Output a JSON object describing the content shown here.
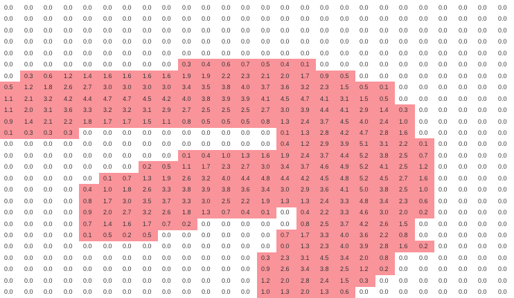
{
  "sheet": {
    "highlight_color": "#f9949a",
    "rows": [
      {
        "values": [
          "0.0",
          "0.0",
          "0.0",
          "0.0",
          "0.0",
          "0.0",
          "0.0",
          "0.0",
          "0.0",
          "0.0",
          "0.0",
          "0.0",
          "0.0",
          "0.0",
          "0.0",
          "0.0",
          "0.0",
          "0.0",
          "0.0",
          "0.0",
          "0.0",
          "0.0",
          "0.0",
          "0.0",
          "0.0",
          "0.0"
        ],
        "highlight": []
      },
      {
        "values": [
          "0.0",
          "0.0",
          "0.0",
          "0.0",
          "0.0",
          "0.0",
          "0.0",
          "0.0",
          "0.0",
          "0.0",
          "0.0",
          "0.0",
          "0.0",
          "0.0",
          "0.0",
          "0.0",
          "0.0",
          "0.0",
          "0.0",
          "0.0",
          "0.0",
          "0.0",
          "0.0",
          "0.0",
          "0.0",
          "0.0"
        ],
        "highlight": []
      },
      {
        "values": [
          "0.0",
          "0.0",
          "0.0",
          "0.0",
          "0.0",
          "0.0",
          "0.0",
          "0.0",
          "0.0",
          "0.0",
          "0.0",
          "0.0",
          "0.0",
          "0.0",
          "0.0",
          "0.0",
          "0.0",
          "0.0",
          "0.0",
          "0.0",
          "0.0",
          "0.0",
          "0.0",
          "0.0",
          "0.0",
          "0.0"
        ],
        "highlight": []
      },
      {
        "values": [
          "0.0",
          "0.0",
          "0.0",
          "0.0",
          "0.0",
          "0.0",
          "0.0",
          "0.0",
          "0.0",
          "0.0",
          "0.0",
          "0.0",
          "0.0",
          "0.0",
          "0.0",
          "0.0",
          "0.0",
          "0.0",
          "0.0",
          "0.0",
          "0.0",
          "0.0",
          "0.0",
          "0.0",
          "0.0",
          "0.0"
        ],
        "highlight": []
      },
      {
        "values": [
          "0.0",
          "0.0",
          "0.0",
          "0.0",
          "0.0",
          "0.0",
          "0.0",
          "0.0",
          "0.0",
          "0.0",
          "0.0",
          "0.0",
          "0.0",
          "0.0",
          "0.0",
          "0.0",
          "0.0",
          "0.0",
          "0.0",
          "0.0",
          "0.0",
          "0.0",
          "0.0",
          "0.0",
          "0.0",
          "0.0"
        ],
        "highlight": []
      },
      {
        "values": [
          "0.0",
          "0.0",
          "0.0",
          "0.0",
          "0.0",
          "0.0",
          "0.0",
          "0.0",
          "0.0",
          "0.3",
          "0.4",
          "0.6",
          "0.7",
          "0.5",
          "0.4",
          "0.1",
          "0.0",
          "0.0",
          "0.0",
          "0.0",
          "0.0",
          "0.0",
          "0.0",
          "0.0",
          "0.0",
          "0.0"
        ],
        "highlight": [
          9,
          10,
          11,
          12,
          13,
          14,
          15
        ]
      },
      {
        "values": [
          "0.0",
          "0.3",
          "0.6",
          "1.2",
          "1.4",
          "1.6",
          "1.6",
          "1.6",
          "1.6",
          "1.9",
          "1.9",
          "2.2",
          "2.3",
          "2.1",
          "2.0",
          "1.7",
          "0.9",
          "0.5",
          "0.0",
          "0.0",
          "0.0",
          "0.0",
          "0.0",
          "0.0",
          "0.0",
          "0.0"
        ],
        "highlight": [
          1,
          2,
          3,
          4,
          5,
          6,
          7,
          8,
          9,
          10,
          11,
          12,
          13,
          14,
          15,
          16,
          17
        ]
      },
      {
        "values": [
          "0.5",
          "1.2",
          "1.8",
          "2.6",
          "2.7",
          "3.0",
          "3.0",
          "3.0",
          "3.0",
          "3.4",
          "3.5",
          "3.8",
          "4.0",
          "3.7",
          "3.6",
          "3.2",
          "2.3",
          "1.5",
          "0.5",
          "0.1",
          "0.0",
          "0.0",
          "0.0",
          "0.0",
          "0.0",
          "0.0"
        ],
        "highlight": [
          0,
          1,
          2,
          3,
          4,
          5,
          6,
          7,
          8,
          9,
          10,
          11,
          12,
          13,
          14,
          15,
          16,
          17,
          18,
          19
        ]
      },
      {
        "values": [
          "1.1",
          "2.1",
          "3.2",
          "4.2",
          "4.4",
          "4.7",
          "4.7",
          "4.5",
          "4.2",
          "4.0",
          "3.8",
          "3.9",
          "3.9",
          "4.1",
          "4.5",
          "4.7",
          "4.1",
          "3.1",
          "1.5",
          "0.5",
          "0.0",
          "0.0",
          "0.0",
          "0.0",
          "0.0",
          "0.0"
        ],
        "highlight": [
          0,
          1,
          2,
          3,
          4,
          5,
          6,
          7,
          8,
          9,
          10,
          11,
          12,
          13,
          14,
          15,
          16,
          17,
          18,
          19
        ]
      },
      {
        "values": [
          "1.1",
          "2.0",
          "3.1",
          "3.6",
          "3.3",
          "3.2",
          "3.2",
          "3.1",
          "2.9",
          "2.7",
          "2.5",
          "2.5",
          "2.5",
          "2.7",
          "3.0",
          "3.9",
          "4.4",
          "4.1",
          "2.9",
          "1.4",
          "0.3",
          "0.0",
          "0.0",
          "0.0",
          "0.0",
          "0.0"
        ],
        "highlight": [
          0,
          1,
          2,
          3,
          4,
          5,
          6,
          7,
          8,
          9,
          10,
          11,
          12,
          13,
          14,
          15,
          16,
          17,
          18,
          19,
          20
        ]
      },
      {
        "values": [
          "0.9",
          "1.4",
          "2.1",
          "2.2",
          "1.8",
          "1.7",
          "1.7",
          "1.5",
          "1.1",
          "0.8",
          "0.5",
          "0.5",
          "0.5",
          "0.8",
          "1.3",
          "2.4",
          "3.7",
          "4.5",
          "4.0",
          "2.4",
          "1.0",
          "0.0",
          "0.0",
          "0.0",
          "0.0",
          "0.0"
        ],
        "highlight": [
          0,
          1,
          2,
          3,
          4,
          5,
          6,
          7,
          8,
          9,
          10,
          11,
          12,
          13,
          14,
          15,
          16,
          17,
          18,
          19,
          20
        ]
      },
      {
        "values": [
          "0.1",
          "0.3",
          "0.3",
          "0.3",
          "0.0",
          "0.0",
          "0.0",
          "0.0",
          "0.0",
          "0.0",
          "0.0",
          "0.0",
          "0.0",
          "0.0",
          "0.1",
          "1.3",
          "2.8",
          "4.2",
          "4.7",
          "2.8",
          "1.6",
          "0.0",
          "0.0",
          "0.0",
          "0.0",
          "0.0"
        ],
        "highlight": [
          0,
          1,
          2,
          3,
          14,
          15,
          16,
          17,
          18,
          19,
          20
        ]
      },
      {
        "values": [
          "0.0",
          "0.0",
          "0.0",
          "0.0",
          "0.0",
          "0.0",
          "0.0",
          "0.0",
          "0.0",
          "0.0",
          "0.0",
          "0.0",
          "0.0",
          "0.0",
          "0.4",
          "1.2",
          "2.9",
          "3.9",
          "5.1",
          "3.1",
          "2.2",
          "0.1",
          "0.0",
          "0.0",
          "0.0",
          "0.0"
        ],
        "highlight": [
          14,
          15,
          16,
          17,
          18,
          19,
          20,
          21
        ]
      },
      {
        "values": [
          "0.0",
          "0.0",
          "0.0",
          "0.0",
          "0.0",
          "0.0",
          "0.0",
          "0.0",
          "0.0",
          "0.1",
          "0.4",
          "1.0",
          "1.3",
          "1.6",
          "1.9",
          "2.4",
          "3.7",
          "4.4",
          "5.2",
          "3.8",
          "2.5",
          "0.7",
          "0.0",
          "0.0",
          "0.0",
          "0.0"
        ],
        "highlight": [
          9,
          10,
          11,
          12,
          13,
          14,
          15,
          16,
          17,
          18,
          19,
          20,
          21
        ]
      },
      {
        "values": [
          "0.0",
          "0.0",
          "0.0",
          "0.0",
          "0.0",
          "0.0",
          "0.0",
          "0.2",
          "0.5",
          "1.1",
          "1.7",
          "2.3",
          "2.7",
          "3.0",
          "3.4",
          "3.7",
          "4.6",
          "4.9",
          "5.2",
          "4.1",
          "2.5",
          "1.2",
          "0.0",
          "0.0",
          "0.0",
          "0.0"
        ],
        "highlight": [
          7,
          8,
          9,
          10,
          11,
          12,
          13,
          14,
          15,
          16,
          17,
          18,
          19,
          20,
          21
        ]
      },
      {
        "values": [
          "0.0",
          "0.0",
          "0.0",
          "0.0",
          "0.0",
          "0.1",
          "0.7",
          "1.3",
          "1.9",
          "2.6",
          "3.2",
          "4.0",
          "4.4",
          "4.8",
          "4.4",
          "4.2",
          "4.5",
          "4.8",
          "5.2",
          "4.5",
          "2.7",
          "1.6",
          "0.0",
          "0.0",
          "0.0",
          "0.0"
        ],
        "highlight": [
          5,
          6,
          7,
          8,
          9,
          10,
          11,
          12,
          13,
          14,
          15,
          16,
          17,
          18,
          19,
          20,
          21
        ]
      },
      {
        "values": [
          "0.0",
          "0.0",
          "0.0",
          "0.0",
          "0.4",
          "1.0",
          "1.8",
          "2.6",
          "3.3",
          "3.8",
          "3.9",
          "3.8",
          "3.6",
          "3.4",
          "3.0",
          "2.9",
          "3.6",
          "4.1",
          "5.0",
          "3.8",
          "2.5",
          "1.0",
          "0.0",
          "0.0",
          "0.0",
          "0.0"
        ],
        "highlight": [
          4,
          5,
          6,
          7,
          8,
          9,
          10,
          11,
          12,
          13,
          14,
          15,
          16,
          17,
          18,
          19,
          20,
          21
        ]
      },
      {
        "values": [
          "0.0",
          "0.0",
          "0.0",
          "0.0",
          "0.8",
          "1.7",
          "3.0",
          "3.5",
          "3.7",
          "3.3",
          "3.0",
          "2.5",
          "2.2",
          "1.9",
          "1.3",
          "1.3",
          "2.4",
          "3.3",
          "4.8",
          "3.4",
          "2.3",
          "0.6",
          "0.0",
          "0.0",
          "0.0",
          "0.0"
        ],
        "highlight": [
          4,
          5,
          6,
          7,
          8,
          9,
          10,
          11,
          12,
          13,
          14,
          15,
          16,
          17,
          18,
          19,
          20,
          21
        ]
      },
      {
        "values": [
          "0.0",
          "0.0",
          "0.0",
          "0.0",
          "0.9",
          "2.0",
          "2.7",
          "3.2",
          "2.6",
          "1.8",
          "1.3",
          "0.7",
          "0.4",
          "0.1",
          "0.0",
          "0.4",
          "2.2",
          "3.3",
          "4.6",
          "3.0",
          "2.0",
          "0.2",
          "0.0",
          "0.0",
          "0.0",
          "0.0"
        ],
        "highlight": [
          4,
          5,
          6,
          7,
          8,
          9,
          10,
          11,
          12,
          13,
          15,
          16,
          17,
          18,
          19,
          20,
          21
        ]
      },
      {
        "values": [
          "0.0",
          "0.0",
          "0.0",
          "0.0",
          "0.7",
          "1.4",
          "1.6",
          "1.7",
          "0.7",
          "0.2",
          "0.0",
          "0.0",
          "0.0",
          "0.0",
          "0.0",
          "0.8",
          "2.5",
          "3.7",
          "4.2",
          "2.6",
          "1.5",
          "0.0",
          "0.0",
          "0.0",
          "0.0",
          "0.0"
        ],
        "highlight": [
          4,
          5,
          6,
          7,
          8,
          9,
          15,
          16,
          17,
          18,
          19,
          20
        ]
      },
      {
        "values": [
          "0.0",
          "0.0",
          "0.0",
          "0.0",
          "0.1",
          "0.5",
          "0.2",
          "0.5",
          "0.0",
          "0.0",
          "0.0",
          "0.0",
          "0.0",
          "0.0",
          "0.7",
          "1.7",
          "3.3",
          "4.0",
          "3.6",
          "2.2",
          "0.8",
          "0.0",
          "0.0",
          "0.0",
          "0.0",
          "0.0"
        ],
        "highlight": [
          4,
          5,
          6,
          7,
          14,
          15,
          16,
          17,
          18,
          19,
          20
        ]
      },
      {
        "values": [
          "0.0",
          "0.0",
          "0.0",
          "0.0",
          "0.0",
          "0.0",
          "0.0",
          "0.0",
          "0.0",
          "0.0",
          "0.0",
          "0.0",
          "0.0",
          "0.0",
          "0.0",
          "1.3",
          "2.3",
          "4.0",
          "3.9",
          "2.8",
          "1.6",
          "0.2",
          "0.0",
          "0.0",
          "0.0",
          "0.0"
        ],
        "highlight": [
          14,
          15,
          16,
          17,
          18,
          19,
          20,
          21
        ]
      },
      {
        "values": [
          "0.0",
          "0.0",
          "0.0",
          "0.0",
          "0.0",
          "0.0",
          "0.0",
          "0.0",
          "0.0",
          "0.0",
          "0.0",
          "0.0",
          "0.0",
          "0.3",
          "2.3",
          "3.1",
          "4.5",
          "3.4",
          "2.0",
          "0.8",
          "0.0",
          "0.0",
          "0.0",
          "0.0",
          "0.0",
          "0.0"
        ],
        "highlight": [
          13,
          14,
          15,
          16,
          17,
          18,
          19
        ]
      },
      {
        "values": [
          "0.0",
          "0.0",
          "0.0",
          "0.0",
          "0.0",
          "0.0",
          "0.0",
          "0.0",
          "0.0",
          "0.0",
          "0.0",
          "0.0",
          "0.0",
          "0.9",
          "2.6",
          "3.4",
          "3.8",
          "2.5",
          "1.2",
          "0.2",
          "0.0",
          "0.0",
          "0.0",
          "0.0",
          "0.0",
          "0.0"
        ],
        "highlight": [
          13,
          14,
          15,
          16,
          17,
          18,
          19
        ]
      },
      {
        "values": [
          "0.0",
          "0.0",
          "0.0",
          "0.0",
          "0.0",
          "0.0",
          "0.0",
          "0.0",
          "0.0",
          "0.0",
          "0.0",
          "0.0",
          "0.0",
          "1.2",
          "2.0",
          "2.8",
          "2.4",
          "1.5",
          "0.3",
          "0.0",
          "0.0",
          "0.0",
          "0.0",
          "0.0",
          "0.0",
          "0.0"
        ],
        "highlight": [
          13,
          14,
          15,
          16,
          17,
          18
        ]
      },
      {
        "values": [
          "0.0",
          "0.0",
          "0.0",
          "0.0",
          "0.0",
          "0.0",
          "0.0",
          "0.0",
          "0.0",
          "0.0",
          "0.0",
          "0.0",
          "0.0",
          "1.0",
          "1.3",
          "2.0",
          "1.3",
          "0.6",
          "0.0",
          "0.0",
          "0.0",
          "0.0",
          "0.0",
          "0.0",
          "0.0",
          "0.0"
        ],
        "highlight": [
          13,
          14,
          15,
          16,
          17
        ]
      }
    ]
  }
}
